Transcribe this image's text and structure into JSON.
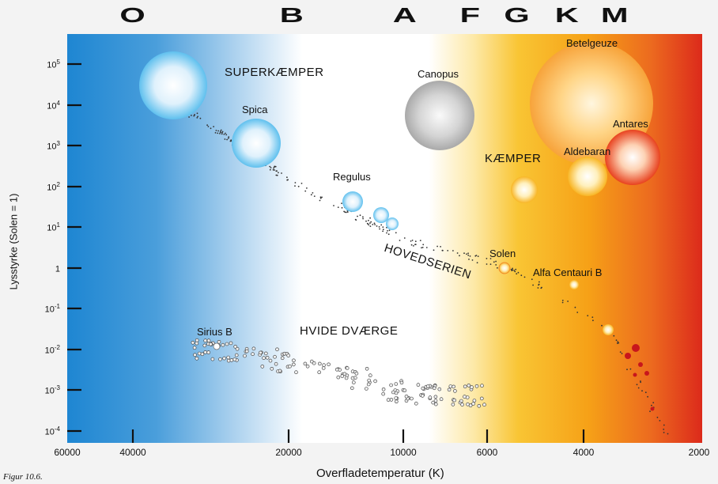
{
  "spectral_classes": [
    "O",
    "B",
    "A",
    "F",
    "G",
    "K",
    "M"
  ],
  "y_axis": {
    "title": "Lysstyrke (Solen = 1)",
    "ticks": [
      {
        "base": "10",
        "exp": "5"
      },
      {
        "base": "10",
        "exp": "4"
      },
      {
        "base": "10",
        "exp": "3"
      },
      {
        "base": "10",
        "exp": "2"
      },
      {
        "base": "10",
        "exp": "1"
      },
      {
        "base": "1",
        "exp": ""
      },
      {
        "base": "10",
        "exp": "-1"
      },
      {
        "base": "10",
        "exp": "-2"
      },
      {
        "base": "10",
        "exp": "-3"
      },
      {
        "base": "10",
        "exp": "-4"
      }
    ]
  },
  "x_axis": {
    "title": "Overfladetemperatur (K)",
    "ticks": [
      "60000",
      "40000",
      "20000",
      "10000",
      "6000",
      "4000",
      "2000"
    ]
  },
  "region_labels": {
    "supergiants": "SUPERKÆMPER",
    "giants": "KÆMPER",
    "main_sequence": "HOVEDSERIEN",
    "white_dwarfs": "HVIDE DVÆRGE"
  },
  "stars": {
    "spica": "Spica",
    "canopus": "Canopus",
    "betelgeuze": "Betelgeuze",
    "antares": "Antares",
    "aldebaran": "Aldebaran",
    "regulus": "Regulus",
    "solen": "Solen",
    "alfa_centauri_b": "Alfa Centauri B",
    "sirius_b": "Sirius B"
  },
  "caption": "Figur 10.6.",
  "colors": {
    "hot": "#1e86d2",
    "cool": "#dc2a1b",
    "sun": "#f7b43a"
  }
}
